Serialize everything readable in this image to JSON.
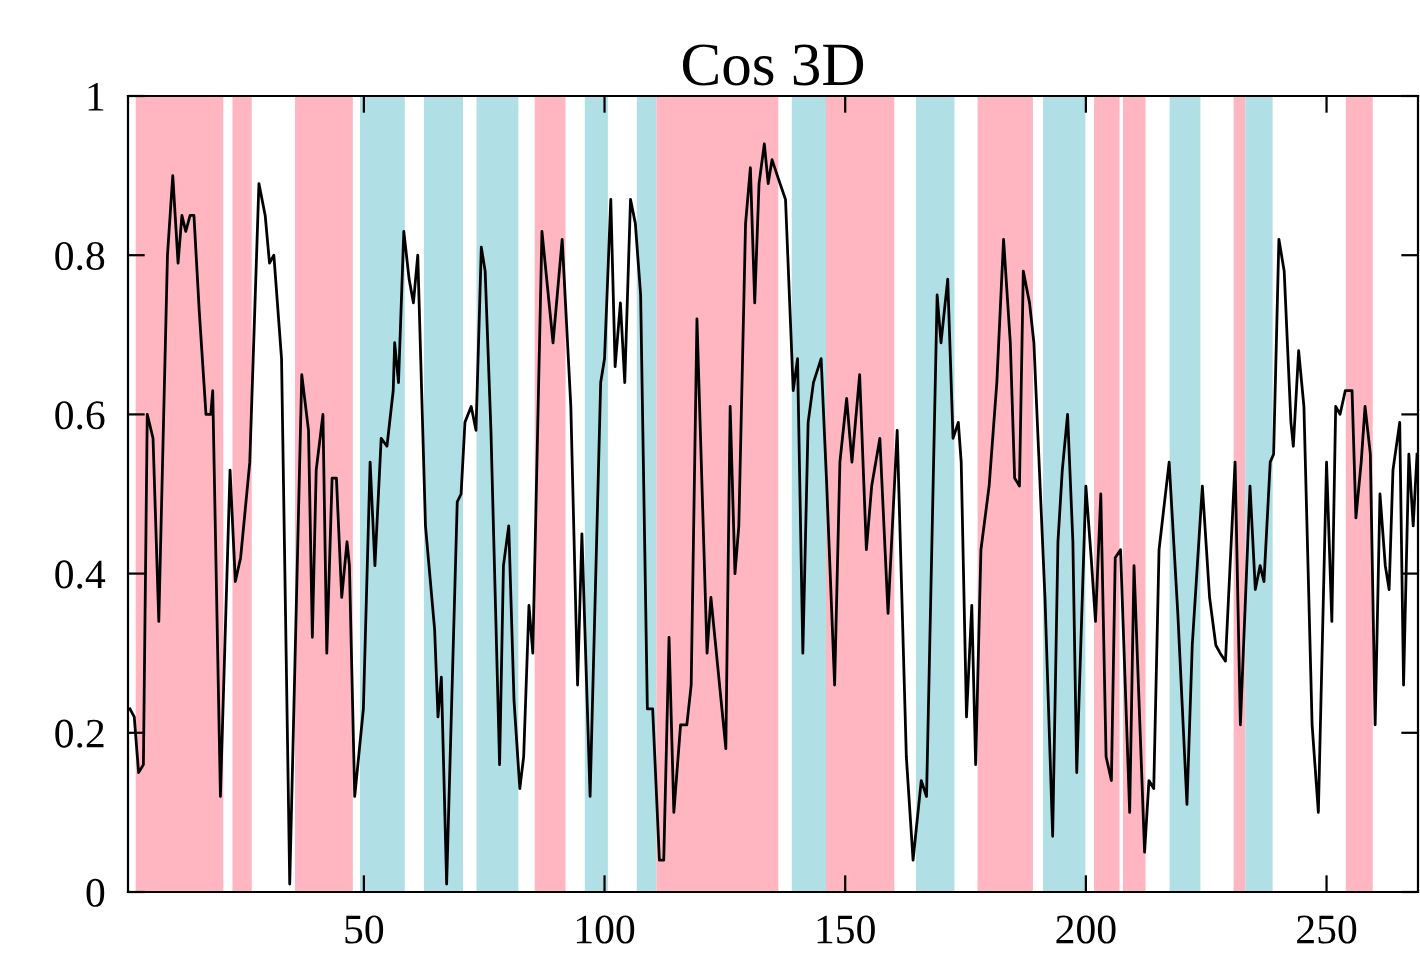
{
  "chart_data": {
    "type": "line",
    "title": "Cos 3D",
    "xlim": [
      1,
      269
    ],
    "ylim": [
      0,
      1
    ],
    "xticks": [
      50,
      100,
      150,
      200,
      250
    ],
    "yticks": [
      0,
      {
        "value": 0.2,
        "label": "0.2"
      },
      {
        "value": 0.4,
        "label": "0.4"
      },
      {
        "value": 0.6,
        "label": "0.6"
      },
      {
        "value": 0.8,
        "label": "0.8"
      },
      1
    ],
    "grid": false,
    "legend": false,
    "marker": "none",
    "line_style": "solid",
    "series": [
      {
        "color": "#000000",
        "x": [
          1.4,
          2.3,
          3.2,
          4.2,
          5.0,
          6.2,
          7.4,
          9.2,
          10.3,
          11.4,
          12.2,
          13.0,
          13.9,
          14.7,
          15.8,
          17.2,
          18.2,
          18.6,
          20.2,
          22.2,
          23.3,
          24.4,
          26.3,
          28.2,
          29.5,
          30.4,
          31.3,
          32.9,
          34.6,
          37.1,
          38.5,
          39.3,
          40.1,
          41.5,
          42.3,
          43.4,
          44.3,
          45.4,
          46.5,
          47.0,
          48.1,
          49.9,
          51.3,
          52.3,
          53.6,
          54.8,
          56.1,
          56.4,
          57.2,
          58.3,
          59.4,
          60.3,
          61.2,
          62.8,
          64.7,
          65.4,
          66.1,
          67.2,
          69.4,
          70.2,
          71.0,
          72.3,
          73.3,
          74.4,
          75.2,
          76.4,
          78.2,
          79.0,
          80.1,
          81.2,
          82.4,
          83.2,
          84.3,
          85.1,
          87.0,
          89.3,
          91.2,
          93.0,
          94.4,
          95.3,
          97.0,
          99.2,
          100.0,
          101.3,
          102.2,
          103.3,
          104.2,
          105.4,
          106.4,
          107.5,
          108.9,
          110.0,
          111.4,
          112.3,
          113.4,
          114.4,
          115.8,
          117.1,
          118.0,
          119.2,
          121.3,
          122.1,
          125.2,
          126.1,
          127.1,
          127.9,
          129.3,
          130.3,
          131.2,
          132.1,
          133.2,
          134.0,
          134.8,
          135.9,
          137.6,
          139.2,
          140.1,
          141.2,
          142.3,
          143.4,
          145.0,
          146.1,
          147.8,
          148.9,
          150.3,
          151.4,
          153.0,
          154.4,
          155.5,
          157.2,
          158.9,
          160.8,
          162.7,
          164.1,
          165.8,
          166.9,
          169.1,
          169.9,
          171.3,
          172.4,
          173.5,
          174.1,
          175.2,
          176.3,
          177.1,
          178.2,
          179.9,
          181.5,
          182.9,
          184.3,
          185.2,
          186.2,
          187.0,
          188.3,
          189.2,
          191.5,
          193.1,
          194.2,
          195.1,
          196.2,
          197.3,
          198.1,
          200.0,
          201.1,
          202.0,
          203.1,
          204.2,
          205.3,
          206.1,
          207.2,
          209.1,
          210.0,
          212.2,
          213.1,
          214.1,
          215.2,
          217.3,
          219.1,
          221.0,
          222.1,
          224.2,
          225.7,
          227.0,
          227.9,
          229.0,
          231.0,
          232.1,
          234.1,
          235.2,
          236.2,
          237.0,
          238.3,
          239.0,
          240.1,
          241.2,
          242.6,
          243.1,
          244.2,
          245.3,
          247.0,
          248.3,
          250.0,
          251.1,
          251.9,
          252.8,
          253.9,
          255.3,
          256.1,
          257.2,
          258.0,
          259.1,
          260.1,
          261.1,
          262.2,
          263.0,
          263.8,
          265.2,
          266.0,
          267.1,
          268.0,
          268.8
        ],
        "values": [
          0.23,
          0.22,
          0.15,
          0.16,
          0.6,
          0.57,
          0.34,
          0.8,
          0.9,
          0.79,
          0.85,
          0.83,
          0.85,
          0.85,
          0.73,
          0.6,
          0.6,
          0.63,
          0.12,
          0.53,
          0.39,
          0.42,
          0.54,
          0.89,
          0.85,
          0.79,
          0.8,
          0.67,
          0.01,
          0.65,
          0.58,
          0.32,
          0.53,
          0.6,
          0.3,
          0.52,
          0.52,
          0.37,
          0.44,
          0.41,
          0.12,
          0.23,
          0.54,
          0.41,
          0.57,
          0.56,
          0.63,
          0.69,
          0.64,
          0.83,
          0.77,
          0.74,
          0.8,
          0.46,
          0.33,
          0.22,
          0.27,
          0.01,
          0.49,
          0.5,
          0.59,
          0.61,
          0.58,
          0.81,
          0.78,
          0.58,
          0.16,
          0.41,
          0.46,
          0.24,
          0.13,
          0.17,
          0.36,
          0.3,
          0.83,
          0.69,
          0.82,
          0.61,
          0.26,
          0.45,
          0.12,
          0.64,
          0.67,
          0.87,
          0.66,
          0.74,
          0.64,
          0.87,
          0.84,
          0.75,
          0.23,
          0.23,
          0.04,
          0.04,
          0.32,
          0.1,
          0.21,
          0.21,
          0.26,
          0.72,
          0.3,
          0.37,
          0.18,
          0.61,
          0.4,
          0.46,
          0.84,
          0.91,
          0.74,
          0.89,
          0.94,
          0.89,
          0.92,
          0.9,
          0.87,
          0.63,
          0.67,
          0.3,
          0.59,
          0.64,
          0.67,
          0.52,
          0.26,
          0.54,
          0.62,
          0.54,
          0.65,
          0.43,
          0.51,
          0.57,
          0.35,
          0.58,
          0.17,
          0.04,
          0.14,
          0.12,
          0.75,
          0.69,
          0.77,
          0.57,
          0.59,
          0.54,
          0.22,
          0.36,
          0.16,
          0.43,
          0.51,
          0.64,
          0.82,
          0.69,
          0.52,
          0.51,
          0.78,
          0.74,
          0.69,
          0.37,
          0.07,
          0.44,
          0.53,
          0.6,
          0.44,
          0.15,
          0.51,
          0.42,
          0.34,
          0.5,
          0.17,
          0.14,
          0.42,
          0.43,
          0.1,
          0.41,
          0.05,
          0.14,
          0.13,
          0.43,
          0.54,
          0.35,
          0.11,
          0.31,
          0.51,
          0.37,
          0.31,
          0.3,
          0.29,
          0.54,
          0.21,
          0.51,
          0.38,
          0.41,
          0.39,
          0.54,
          0.55,
          0.82,
          0.78,
          0.59,
          0.56,
          0.68,
          0.61,
          0.21,
          0.1,
          0.54,
          0.34,
          0.61,
          0.6,
          0.63,
          0.63,
          0.47,
          0.54,
          0.61,
          0.55,
          0.21,
          0.5,
          0.41,
          0.38,
          0.53,
          0.59,
          0.26,
          0.55,
          0.46,
          0.55
        ]
      }
    ],
    "bands": [
      {
        "axis": "x",
        "from": 2.6,
        "to": 20.8,
        "color": "#ffb6c1"
      },
      {
        "axis": "x",
        "from": 22.7,
        "to": 26.7,
        "color": "#ffb6c1"
      },
      {
        "axis": "x",
        "from": 35.7,
        "to": 47.7,
        "color": "#ffb6c1"
      },
      {
        "axis": "x",
        "from": 49.2,
        "to": 58.5,
        "color": "#b0e0e6"
      },
      {
        "axis": "x",
        "from": 62.5,
        "to": 70.6,
        "color": "#b0e0e6"
      },
      {
        "axis": "x",
        "from": 73.4,
        "to": 82.1,
        "color": "#b0e0e6"
      },
      {
        "axis": "x",
        "from": 85.5,
        "to": 91.9,
        "color": "#ffb6c1"
      },
      {
        "axis": "x",
        "from": 95.9,
        "to": 100.7,
        "color": "#b0e0e6"
      },
      {
        "axis": "x",
        "from": 106.7,
        "to": 110.8,
        "color": "#b0e0e6"
      },
      {
        "axis": "x",
        "from": 110.8,
        "to": 136.1,
        "color": "#ffb6c1"
      },
      {
        "axis": "x",
        "from": 138.9,
        "to": 146.0,
        "color": "#b0e0e6"
      },
      {
        "axis": "x",
        "from": 146.0,
        "to": 160.2,
        "color": "#ffb6c1"
      },
      {
        "axis": "x",
        "from": 164.7,
        "to": 172.7,
        "color": "#b0e0e6"
      },
      {
        "axis": "x",
        "from": 177.5,
        "to": 189.0,
        "color": "#ffb6c1"
      },
      {
        "axis": "x",
        "from": 191.1,
        "to": 199.9,
        "color": "#b0e0e6"
      },
      {
        "axis": "x",
        "from": 201.7,
        "to": 207.0,
        "color": "#ffb6c1"
      },
      {
        "axis": "x",
        "from": 207.7,
        "to": 212.4,
        "color": "#ffb6c1"
      },
      {
        "axis": "x",
        "from": 217.4,
        "to": 223.8,
        "color": "#b0e0e6"
      },
      {
        "axis": "x",
        "from": 230.7,
        "to": 233.1,
        "color": "#ffb6c1"
      },
      {
        "axis": "x",
        "from": 233.1,
        "to": 238.8,
        "color": "#b0e0e6"
      },
      {
        "axis": "x",
        "from": 254.0,
        "to": 259.6,
        "color": "#ffb6c1"
      }
    ]
  }
}
